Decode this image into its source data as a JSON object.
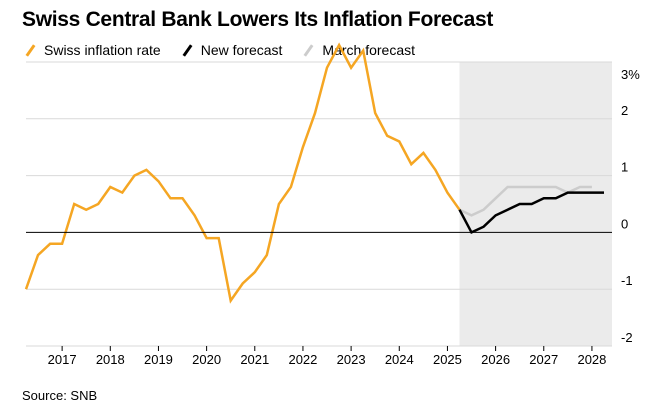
{
  "title": "Swiss Central Bank Lowers Its Inflation Forecast",
  "source": "Source: SNB",
  "legend": [
    {
      "label": "Swiss inflation rate",
      "color": "#f5a623"
    },
    {
      "label": "New forecast",
      "color": "#000000"
    },
    {
      "label": "March forecast",
      "color": "#cccccc"
    }
  ],
  "chart_data": {
    "type": "line",
    "title": "Swiss Central Bank Lowers Its Inflation Forecast",
    "xlabel": "",
    "ylabel": "",
    "xlim": [
      "2016-04",
      "2028-06"
    ],
    "ylim": [
      -2,
      3
    ],
    "grid": true,
    "legend_position": "top-left",
    "x_ticks": [
      "2017",
      "2018",
      "2019",
      "2020",
      "2021",
      "2022",
      "2023",
      "2024",
      "2025",
      "2026",
      "2027",
      "2028"
    ],
    "y_ticks": [
      {
        "value": 3,
        "label": "3%"
      },
      {
        "value": 2,
        "label": "2"
      },
      {
        "value": 1,
        "label": "1"
      },
      {
        "value": 0,
        "label": "0"
      },
      {
        "value": -1,
        "label": "-1"
      },
      {
        "value": -2,
        "label": "-2"
      }
    ],
    "forecast_shading": {
      "start": "2025-04",
      "end": "2028-06"
    },
    "series": [
      {
        "name": "Swiss inflation rate",
        "color": "#f5a623",
        "points": [
          [
            "2016-04",
            -1.0
          ],
          [
            "2016-07",
            -0.4
          ],
          [
            "2016-10",
            -0.2
          ],
          [
            "2017-01",
            -0.2
          ],
          [
            "2017-04",
            0.5
          ],
          [
            "2017-07",
            0.4
          ],
          [
            "2017-10",
            0.5
          ],
          [
            "2018-01",
            0.8
          ],
          [
            "2018-04",
            0.7
          ],
          [
            "2018-07",
            1.0
          ],
          [
            "2018-10",
            1.1
          ],
          [
            "2019-01",
            0.9
          ],
          [
            "2019-04",
            0.6
          ],
          [
            "2019-07",
            0.6
          ],
          [
            "2019-10",
            0.3
          ],
          [
            "2020-01",
            -0.1
          ],
          [
            "2020-04",
            -0.1
          ],
          [
            "2020-07",
            -1.2
          ],
          [
            "2020-10",
            -0.9
          ],
          [
            "2021-01",
            -0.7
          ],
          [
            "2021-04",
            -0.4
          ],
          [
            "2021-07",
            0.5
          ],
          [
            "2021-10",
            0.8
          ],
          [
            "2022-01",
            1.5
          ],
          [
            "2022-04",
            2.1
          ],
          [
            "2022-07",
            2.9
          ],
          [
            "2022-10",
            3.3
          ],
          [
            "2023-01",
            2.9
          ],
          [
            "2023-04",
            3.2
          ],
          [
            "2023-07",
            2.1
          ],
          [
            "2023-10",
            1.7
          ],
          [
            "2024-01",
            1.6
          ],
          [
            "2024-04",
            1.2
          ],
          [
            "2024-07",
            1.4
          ],
          [
            "2024-10",
            1.1
          ],
          [
            "2025-01",
            0.7
          ],
          [
            "2025-04",
            0.4
          ]
        ]
      },
      {
        "name": "New forecast",
        "color": "#000000",
        "points": [
          [
            "2025-04",
            0.4
          ],
          [
            "2025-07",
            0.0
          ],
          [
            "2025-10",
            0.1
          ],
          [
            "2026-01",
            0.3
          ],
          [
            "2026-04",
            0.4
          ],
          [
            "2026-07",
            0.5
          ],
          [
            "2026-10",
            0.5
          ],
          [
            "2027-01",
            0.6
          ],
          [
            "2027-04",
            0.6
          ],
          [
            "2027-07",
            0.7
          ],
          [
            "2027-10",
            0.7
          ],
          [
            "2028-01",
            0.7
          ],
          [
            "2028-04",
            0.7
          ]
        ]
      },
      {
        "name": "March forecast",
        "color": "#cccccc",
        "points": [
          [
            "2025-04",
            0.4
          ],
          [
            "2025-07",
            0.3
          ],
          [
            "2025-10",
            0.4
          ],
          [
            "2026-01",
            0.6
          ],
          [
            "2026-04",
            0.8
          ],
          [
            "2026-07",
            0.8
          ],
          [
            "2026-10",
            0.8
          ],
          [
            "2027-01",
            0.8
          ],
          [
            "2027-04",
            0.8
          ],
          [
            "2027-07",
            0.7
          ],
          [
            "2027-10",
            0.8
          ],
          [
            "2028-01",
            0.8
          ]
        ]
      }
    ]
  }
}
